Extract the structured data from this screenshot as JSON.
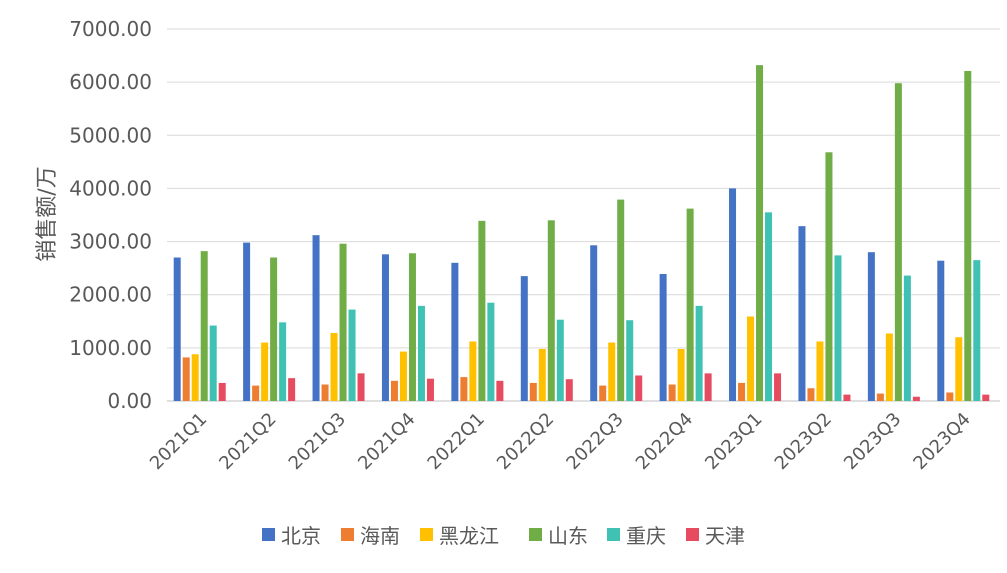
{
  "chart_data": {
    "type": "bar",
    "title": "",
    "xlabel": "",
    "ylabel": "销售额/万",
    "ylim": [
      0,
      7000
    ],
    "yticks": [
      "0.00",
      "1000.00",
      "2000.00",
      "3000.00",
      "4000.00",
      "5000.00",
      "6000.00",
      "7000.00"
    ],
    "grid": true,
    "legend_position": "bottom",
    "categories": [
      "2021Q1",
      "2021Q2",
      "2021Q3",
      "2021Q4",
      "2022Q1",
      "2022Q2",
      "2022Q3",
      "2022Q4",
      "2023Q1",
      "2023Q2",
      "2023Q3",
      "2023Q4"
    ],
    "series": [
      {
        "name": "北京",
        "color": "#4472c4",
        "values": [
          2700,
          2980,
          3120,
          2760,
          2600,
          2350,
          2930,
          2390,
          4000,
          3290,
          2800,
          2640
        ]
      },
      {
        "name": "海南",
        "color": "#ed7d31",
        "values": [
          820,
          290,
          310,
          380,
          450,
          340,
          290,
          310,
          340,
          240,
          140,
          160
        ]
      },
      {
        "name": "黑龙江",
        "color": "#ffc000",
        "values": [
          880,
          1100,
          1280,
          930,
          1120,
          980,
          1100,
          980,
          1590,
          1120,
          1270,
          1200
        ]
      },
      {
        "name": "山东",
        "color": "#70ad47",
        "values": [
          2820,
          2700,
          2960,
          2780,
          3390,
          3400,
          3790,
          3620,
          6320,
          4680,
          5980,
          6210
        ]
      },
      {
        "name": "重庆",
        "color": "#3fc1b3",
        "values": [
          1420,
          1480,
          1720,
          1790,
          1850,
          1530,
          1520,
          1790,
          3550,
          2740,
          2360,
          2650
        ]
      },
      {
        "name": "天津",
        "color": "#e64b5f",
        "values": [
          340,
          430,
          520,
          420,
          380,
          410,
          480,
          520,
          520,
          120,
          80,
          120
        ]
      }
    ]
  }
}
